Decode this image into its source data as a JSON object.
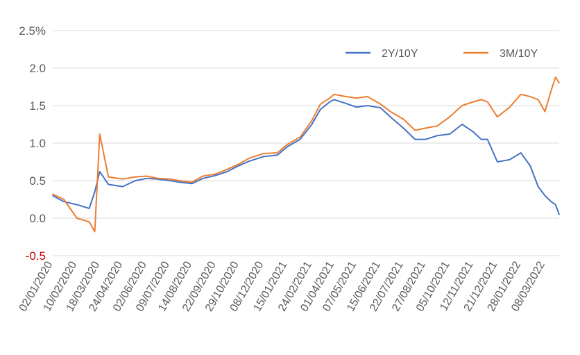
{
  "chart_data": {
    "type": "line",
    "title": "",
    "xlabel": "",
    "ylabel": "",
    "ylim": [
      -0.5,
      2.5
    ],
    "yticks": [
      {
        "value": 2.5,
        "label": "2.5%"
      },
      {
        "value": 2.0,
        "label": "2.0"
      },
      {
        "value": 1.5,
        "label": "1.5"
      },
      {
        "value": 1.0,
        "label": "1.0"
      },
      {
        "value": 0.5,
        "label": "0.5"
      },
      {
        "value": 0.0,
        "label": "0.0"
      },
      {
        "value": -0.5,
        "label": "-0.5"
      }
    ],
    "negative_label_color": "#c00000",
    "grid": true,
    "legend_position": "top-right",
    "x": [
      "2020-01-02",
      "2020-01-20",
      "2020-02-10",
      "2020-03-01",
      "2020-03-10",
      "2020-03-18",
      "2020-04-01",
      "2020-04-24",
      "2020-05-15",
      "2020-06-02",
      "2020-06-20",
      "2020-07-09",
      "2020-07-25",
      "2020-08-14",
      "2020-09-01",
      "2020-09-22",
      "2020-10-10",
      "2020-10-29",
      "2020-11-15",
      "2020-12-08",
      "2020-12-30",
      "2021-01-15",
      "2021-02-05",
      "2021-02-24",
      "2021-03-10",
      "2021-03-25",
      "2021-04-01",
      "2021-04-20",
      "2021-05-07",
      "2021-05-25",
      "2021-06-15",
      "2021-07-01",
      "2021-07-22",
      "2021-08-10",
      "2021-08-27",
      "2021-09-15",
      "2021-10-05",
      "2021-10-25",
      "2021-11-12",
      "2021-11-25",
      "2021-12-05",
      "2021-12-21",
      "2022-01-10",
      "2022-01-28",
      "2022-02-12",
      "2022-02-25",
      "2022-03-08",
      "2022-03-18",
      "2022-03-25",
      "2022-03-31"
    ],
    "xtick_labels": [
      "02/01/2020",
      "10/02/2020",
      "18/03/2020",
      "24/04/2020",
      "02/06/2020",
      "09/07/2020",
      "14/08/2020",
      "22/09/2020",
      "29/10/2020",
      "08/12/2020",
      "15/01/2021",
      "24/02/2021",
      "01/04/2021",
      "07/05/2021",
      "15/06/2021",
      "22/07/2021",
      "27/08/2021",
      "05/10/2021",
      "12/11/2021",
      "21/12/2021",
      "28/01/2022",
      "08/03/2022"
    ],
    "xtick_dates": [
      "2020-01-02",
      "2020-02-10",
      "2020-03-18",
      "2020-04-24",
      "2020-06-02",
      "2020-07-09",
      "2020-08-14",
      "2020-09-22",
      "2020-10-29",
      "2020-12-08",
      "2021-01-15",
      "2021-02-24",
      "2021-04-01",
      "2021-05-07",
      "2021-06-15",
      "2021-07-22",
      "2021-08-27",
      "2021-10-05",
      "2021-11-12",
      "2021-12-21",
      "2022-01-28",
      "2022-03-08"
    ],
    "series": [
      {
        "name": "2Y/10Y",
        "color": "#4472c4",
        "values": [
          0.3,
          0.22,
          0.18,
          0.13,
          0.35,
          0.62,
          0.45,
          0.42,
          0.5,
          0.53,
          0.52,
          0.5,
          0.48,
          0.46,
          0.53,
          0.57,
          0.62,
          0.7,
          0.76,
          0.82,
          0.84,
          0.95,
          1.05,
          1.25,
          1.45,
          1.55,
          1.58,
          1.53,
          1.48,
          1.5,
          1.47,
          1.35,
          1.2,
          1.05,
          1.05,
          1.1,
          1.12,
          1.25,
          1.15,
          1.05,
          1.05,
          0.75,
          0.78,
          0.87,
          0.7,
          0.42,
          0.3,
          0.22,
          0.18,
          0.05
        ]
      },
      {
        "name": "3M/10Y",
        "color": "#ed7d31",
        "values": [
          0.32,
          0.25,
          0.0,
          -0.05,
          -0.18,
          1.12,
          0.55,
          0.52,
          0.55,
          0.56,
          0.53,
          0.52,
          0.5,
          0.48,
          0.56,
          0.59,
          0.65,
          0.72,
          0.8,
          0.86,
          0.87,
          0.98,
          1.08,
          1.3,
          1.52,
          1.6,
          1.65,
          1.62,
          1.6,
          1.62,
          1.52,
          1.42,
          1.32,
          1.17,
          1.2,
          1.23,
          1.35,
          1.5,
          1.55,
          1.58,
          1.55,
          1.35,
          1.48,
          1.65,
          1.62,
          1.58,
          1.42,
          1.7,
          1.88,
          1.8
        ]
      }
    ]
  }
}
